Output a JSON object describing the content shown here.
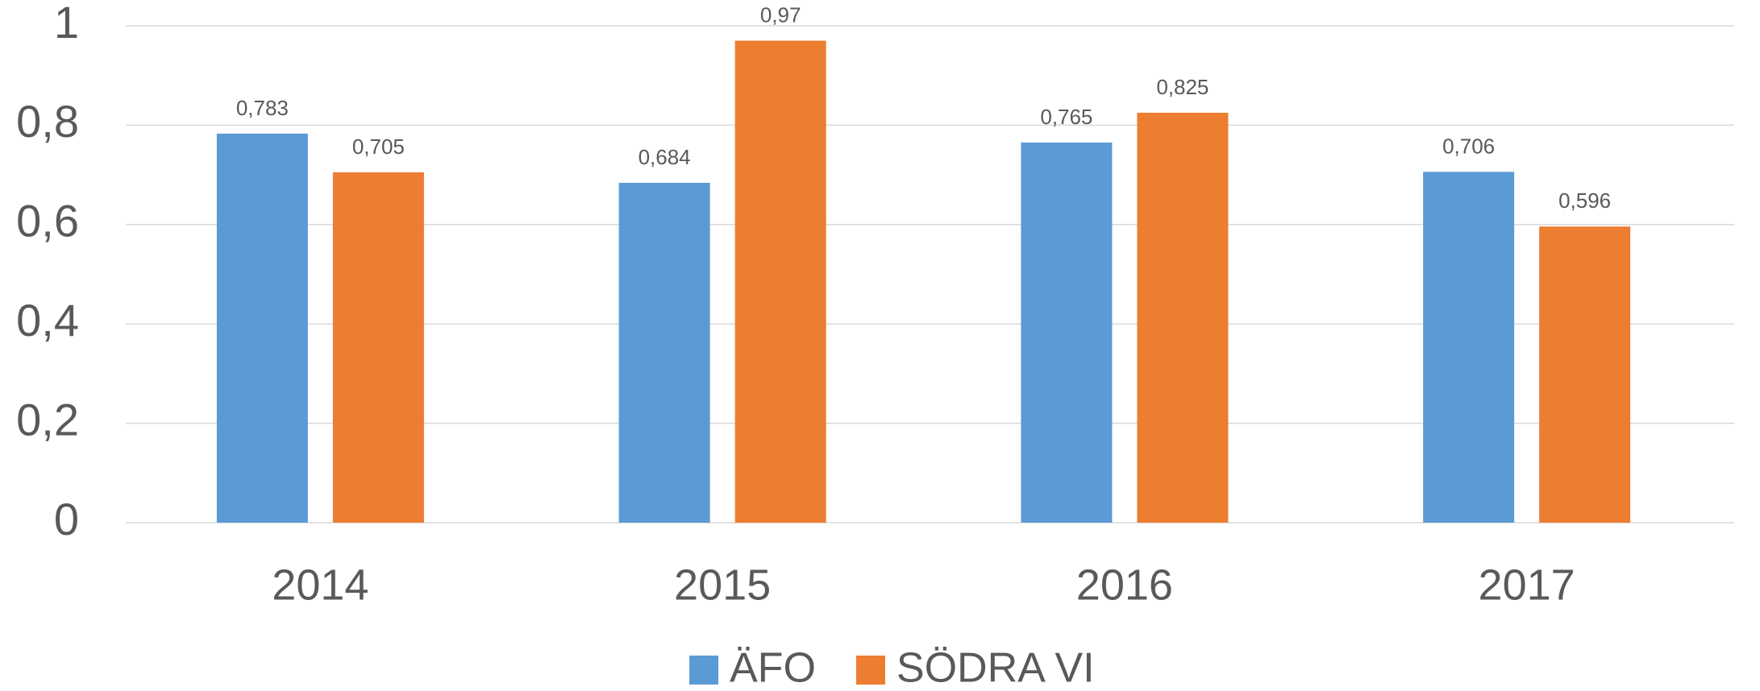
{
  "chart_data": {
    "type": "bar",
    "categories": [
      "2014",
      "2015",
      "2016",
      "2017"
    ],
    "series": [
      {
        "name": "ÄFO",
        "color": "#5b9bd5",
        "values": [
          0.783,
          0.684,
          0.765,
          0.706
        ],
        "value_labels": [
          "0,783",
          "0,684",
          "0,765",
          "0,706"
        ]
      },
      {
        "name": "SÖDRA VI",
        "color": "#ed7d31",
        "values": [
          0.705,
          0.97,
          0.825,
          0.596
        ],
        "value_labels": [
          "0,705",
          "0,97",
          "0,825",
          "0,596"
        ]
      }
    ],
    "ylim": [
      0,
      1
    ],
    "yticks": [
      0,
      {
        "value": 0.2,
        "label": "0,2"
      },
      {
        "value": 0.4,
        "label": "0,4"
      },
      {
        "value": 0.6,
        "label": "0,6"
      },
      {
        "value": 0.8,
        "label": "0,8"
      },
      1
    ],
    "grid": true,
    "legend": "bottom"
  }
}
